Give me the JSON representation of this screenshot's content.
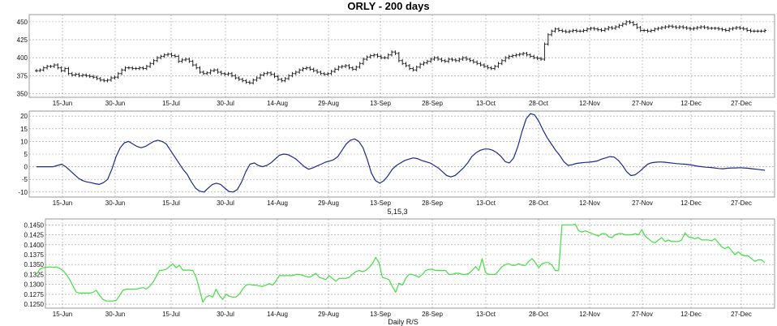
{
  "chart_data": [
    {
      "type": "line",
      "style": "ohlc-bars",
      "title": "ORLY - 200 days",
      "xlabel": "",
      "ylabel": "",
      "ylim": [
        345,
        460
      ],
      "yticks": [
        350,
        375,
        400,
        425,
        450
      ],
      "date_ticks": [
        "15-Jun",
        "30-Jun",
        "15-Jul",
        "30-Jul",
        "14-Aug",
        "29-Aug",
        "13-Sep",
        "28-Sep",
        "13-Oct",
        "28-Oct",
        "12-Nov",
        "27-Nov",
        "12-Dec",
        "27-Dec"
      ],
      "grid": true,
      "color": "#222222",
      "series": [
        {
          "values": [
            382,
            383,
            386,
            388,
            388,
            390,
            386,
            382,
            385,
            378,
            376,
            377,
            375,
            376,
            375,
            374,
            373,
            371,
            369,
            368,
            369,
            372,
            373,
            378,
            383,
            386,
            386,
            385,
            385,
            386,
            385,
            388,
            392,
            396,
            400,
            402,
            404,
            405,
            403,
            402,
            395,
            397,
            398,
            395,
            390,
            386,
            380,
            378,
            379,
            382,
            383,
            380,
            378,
            377,
            378,
            375,
            372,
            370,
            368,
            366,
            365,
            369,
            372,
            376,
            378,
            379,
            377,
            374,
            370,
            368,
            371,
            375,
            378,
            380,
            383,
            385,
            386,
            384,
            382,
            380,
            378,
            377,
            378,
            381,
            384,
            387,
            388,
            389,
            386,
            384,
            387,
            392,
            398,
            401,
            403,
            404,
            402,
            400,
            400,
            404,
            408,
            406,
            396,
            392,
            389,
            385,
            383,
            387,
            391,
            393,
            395,
            398,
            400,
            398,
            396,
            395,
            398,
            397,
            396,
            398,
            400,
            398,
            396,
            394,
            392,
            390,
            388,
            386,
            385,
            388,
            392,
            396,
            400,
            402,
            403,
            404,
            405,
            406,
            404,
            402,
            400,
            399,
            398,
            419,
            432,
            437,
            440,
            438,
            437,
            436,
            437,
            438,
            437,
            437,
            438,
            440,
            441,
            440,
            439,
            438,
            440,
            442,
            441,
            443,
            445,
            447,
            450,
            449,
            446,
            442,
            438,
            438,
            437,
            438,
            440,
            441,
            442,
            443,
            444,
            443,
            442,
            443,
            442,
            441,
            440,
            441,
            442,
            443,
            442,
            441,
            441,
            441,
            440,
            439,
            438,
            440,
            441,
            442,
            441,
            440,
            438,
            437,
            437,
            437,
            437,
            438
          ]
        }
      ]
    },
    {
      "type": "line",
      "title": "",
      "xlabel": "5,15,3",
      "ylabel": "",
      "ylim": [
        -12,
        22
      ],
      "yticks": [
        -10,
        -5,
        0,
        5,
        10,
        15,
        20
      ],
      "date_ticks": [
        "15-Jun",
        "30-Jun",
        "15-Jul",
        "30-Jul",
        "14-Aug",
        "29-Aug",
        "13-Sep",
        "28-Sep",
        "13-Oct",
        "28-Oct",
        "12-Nov",
        "27-Nov",
        "12-Dec",
        "27-Dec"
      ],
      "grid": true,
      "color": "#1a2a8c",
      "series": [
        {
          "values": [
            0,
            0,
            0,
            0,
            0,
            0.5,
            1,
            0,
            -1.5,
            -3,
            -4.5,
            -5.5,
            -6,
            -6.3,
            -6.7,
            -7,
            -6.3,
            -5,
            -1,
            4,
            7.5,
            9.5,
            10,
            9,
            8,
            7.5,
            8,
            9,
            10,
            10.5,
            10,
            9,
            6.5,
            4,
            1.5,
            -1,
            -3,
            -6,
            -8.5,
            -9.7,
            -10,
            -8.5,
            -7,
            -6.5,
            -7,
            -8.5,
            -9.8,
            -10,
            -9,
            -6,
            -2,
            1,
            1.5,
            0.5,
            0,
            0.5,
            1.5,
            3,
            4.5,
            5,
            4.8,
            4,
            3,
            1.5,
            0,
            -1,
            -0.5,
            0.3,
            1,
            1.8,
            2.2,
            2.8,
            4,
            6.5,
            9,
            10.5,
            11,
            10,
            7.5,
            3,
            -2.5,
            -5.5,
            -6.5,
            -5.5,
            -3.5,
            -1,
            0.5,
            1.5,
            2.5,
            3,
            3.5,
            3.2,
            2.5,
            2,
            1.5,
            0.5,
            -0.5,
            -2,
            -3.5,
            -4,
            -3.5,
            -2,
            -0.5,
            1.5,
            4,
            5.5,
            6.5,
            7,
            7,
            6.5,
            5.5,
            4,
            2,
            1.5,
            3.5,
            8,
            14,
            19,
            21,
            20.5,
            18,
            14.5,
            11.5,
            9,
            6.5,
            4.5,
            2,
            0.5,
            0.8,
            1.3,
            1.5,
            1.7,
            1.8,
            2,
            2.3,
            3,
            3.5,
            4,
            3.8,
            2.5,
            0.5,
            -2,
            -3.5,
            -3.2,
            -2,
            -0.5,
            1,
            1.6,
            1.8,
            1.9,
            1.8,
            1.6,
            1.4,
            1.2,
            1.1,
            1,
            0.8,
            0.5,
            0.2,
            0,
            -0.2,
            -0.3,
            -0.5,
            -0.7,
            -0.8,
            -0.6,
            -0.5,
            -0.5,
            -0.4,
            -0.5,
            -0.6,
            -0.8,
            -1,
            -1.2,
            -1.4
          ]
        }
      ]
    },
    {
      "type": "line",
      "title": "",
      "xlabel": "Daily R/S",
      "ylabel": "",
      "ylim": [
        0.124,
        0.1465
      ],
      "yticks": [
        0.125,
        0.1275,
        0.13,
        0.1325,
        0.135,
        0.1375,
        0.14,
        0.1425,
        0.145
      ],
      "ytick_labels": [
        "0.1250",
        "0.1275",
        "0.1300",
        "0.1325",
        "0.1350",
        "0.1375",
        "0.1400",
        "0.1425",
        "0.1450"
      ],
      "date_ticks": [
        "15-Jun",
        "30-Jun",
        "15-Jul",
        "30-Jul",
        "14-Aug",
        "29-Aug",
        "13-Sep",
        "28-Sep",
        "13-Oct",
        "28-Oct",
        "12-Nov",
        "27-Nov",
        "12-Dec",
        "27-Dec"
      ],
      "grid": true,
      "color": "#44dd44",
      "series": [
        {
          "values": [
            0.1325,
            0.1338,
            0.1342,
            0.1343,
            0.1344,
            0.1343,
            0.1344,
            0.134,
            0.1335,
            0.1325,
            0.1312,
            0.1295,
            0.128,
            0.1278,
            0.1278,
            0.1278,
            0.1278,
            0.128,
            0.1285,
            0.1272,
            0.1262,
            0.1258,
            0.1258,
            0.1258,
            0.126,
            0.1272,
            0.1285,
            0.1288,
            0.1288,
            0.1288,
            0.1288,
            0.129,
            0.1292,
            0.1288,
            0.1295,
            0.1305,
            0.132,
            0.1335,
            0.1336,
            0.1338,
            0.1345,
            0.1352,
            0.1342,
            0.1348,
            0.1336,
            0.1336,
            0.1336,
            0.1335,
            0.1318,
            0.1288,
            0.1255,
            0.1268,
            0.1272,
            0.1268,
            0.1288,
            0.1272,
            0.1262,
            0.1275,
            0.127,
            0.1268,
            0.1268,
            0.1275,
            0.1288,
            0.1298,
            0.13,
            0.1298,
            0.1298,
            0.1296,
            0.1295,
            0.1298,
            0.1302,
            0.1298,
            0.1308,
            0.1322,
            0.1322,
            0.1322,
            0.1322,
            0.1322,
            0.1325,
            0.1325,
            0.1323,
            0.132,
            0.1318,
            0.1322,
            0.1328,
            0.1318,
            0.1315,
            0.1312,
            0.1322,
            0.1315,
            0.1308,
            0.1315,
            0.1315,
            0.1315,
            0.1318,
            0.1325,
            0.1332,
            0.1335,
            0.1332,
            0.1335,
            0.1342,
            0.1352,
            0.1368,
            0.1355,
            0.1318,
            0.1315,
            0.1312,
            0.1295,
            0.128,
            0.1303,
            0.1298,
            0.1315,
            0.1325,
            0.1325,
            0.1322,
            0.1318,
            0.1325,
            0.1335,
            0.1338,
            0.1338,
            0.1335,
            0.1335,
            0.1335,
            0.1335,
            0.1325,
            0.1325,
            0.1328,
            0.1328,
            0.1325,
            0.1325,
            0.1328,
            0.1335,
            0.1345,
            0.1335,
            0.1365,
            0.133,
            0.1325,
            0.1325,
            0.1325,
            0.1335,
            0.1345,
            0.135,
            0.1352,
            0.1348,
            0.1348,
            0.1352,
            0.1348,
            0.1348,
            0.1358,
            0.1365,
            0.1355,
            0.1342,
            0.1352,
            0.1355,
            0.1355,
            0.1348,
            0.1335,
            0.1335,
            0.145,
            0.145,
            0.145,
            0.145,
            0.1452,
            0.1435,
            0.1432,
            0.1435,
            0.1432,
            0.1428,
            0.1425,
            0.1422,
            0.1428,
            0.1428,
            0.142,
            0.1418,
            0.1425,
            0.1428,
            0.1428,
            0.1425,
            0.1425,
            0.1425,
            0.1428,
            0.1425,
            0.1438,
            0.1422,
            0.1415,
            0.1408,
            0.1405,
            0.1412,
            0.1418,
            0.1408,
            0.1412,
            0.1408,
            0.1408,
            0.1408,
            0.1412,
            0.143,
            0.142,
            0.1418,
            0.1415,
            0.1418,
            0.1412,
            0.1412,
            0.1412,
            0.141,
            0.1415,
            0.1405,
            0.1395,
            0.139,
            0.1395,
            0.1385,
            0.1375,
            0.1382,
            0.1375,
            0.1372,
            0.1372,
            0.1365,
            0.1358,
            0.1362,
            0.1362,
            0.1355
          ]
        }
      ]
    }
  ]
}
